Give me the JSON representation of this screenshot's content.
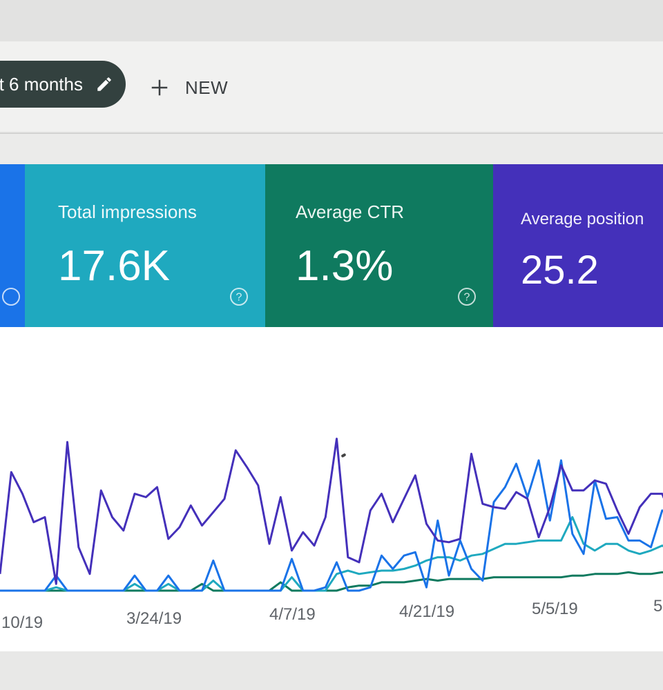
{
  "toolbar": {
    "filter_chip_label": "t 6 months",
    "filter_chip_icon": "pencil-icon",
    "new_button_label": "NEW",
    "new_button_icon": "plus-icon"
  },
  "cards": [
    {
      "id": "clicks",
      "title": "",
      "value": "",
      "color": "#1a73e8",
      "help_icon": "help-circle-icon"
    },
    {
      "id": "impressions",
      "title": "Total impressions",
      "value": "17.6K",
      "color": "#1fa9bf",
      "help_icon": "help-circle-icon"
    },
    {
      "id": "ctr",
      "title": "Average CTR",
      "value": "1.3%",
      "color": "#0f7a5f",
      "help_icon": "help-circle-icon"
    },
    {
      "id": "position",
      "title": "Average position",
      "value": "25.2",
      "color": "#4430ba"
    }
  ],
  "chart_data": {
    "type": "line",
    "x_tick_labels": [
      "10/19",
      "3/24/19",
      "4/7/19",
      "4/21/19",
      "5/5/19",
      "5"
    ],
    "y_range_normalized": [
      0,
      1
    ],
    "series": [
      {
        "color": "#4430ba",
        "values": [
          0.1,
          0.71,
          0.58,
          0.41,
          0.44,
          0.04,
          0.89,
          0.26,
          0.1,
          0.6,
          0.44,
          0.36,
          0.58,
          0.56,
          0.62,
          0.31,
          0.38,
          0.51,
          0.39,
          0.47,
          0.55,
          0.84,
          0.74,
          0.63,
          0.28,
          0.56,
          0.24,
          0.35,
          0.27,
          0.44,
          0.91,
          0.2,
          0.17,
          0.48,
          0.58,
          0.41,
          0.55,
          0.69,
          0.4,
          0.3,
          0.29,
          0.31,
          0.82,
          0.52,
          0.5,
          0.49,
          0.59,
          0.55,
          0.32,
          0.5,
          0.75,
          0.6,
          0.6,
          0.66,
          0.64,
          0.48,
          0.34,
          0.5,
          0.58,
          0.58,
          0.41
        ]
      },
      {
        "color": "#1a73e8",
        "values": [
          0,
          0,
          0,
          0,
          0,
          0.09,
          0,
          0,
          0,
          0,
          0,
          0,
          0.09,
          0,
          0,
          0.09,
          0,
          0,
          0,
          0.18,
          0,
          0,
          0,
          0,
          0,
          0,
          0.19,
          0,
          0,
          0.02,
          0.17,
          0,
          0,
          0.02,
          0.21,
          0.13,
          0.21,
          0.23,
          0.02,
          0.42,
          0.09,
          0.3,
          0.13,
          0.06,
          0.53,
          0.62,
          0.76,
          0.56,
          0.78,
          0.42,
          0.78,
          0.34,
          0.22,
          0.66,
          0.43,
          0.44,
          0.3,
          0.3,
          0.26,
          0.48,
          0.44
        ]
      },
      {
        "color": "#1fa9bf",
        "values": [
          0,
          0,
          0,
          0,
          0,
          0.02,
          0,
          0,
          0,
          0,
          0,
          0,
          0.04,
          0,
          0,
          0.04,
          0,
          0,
          0,
          0.06,
          0,
          0,
          0,
          0,
          0,
          0,
          0.08,
          0,
          0,
          0,
          0.1,
          0.12,
          0.1,
          0.11,
          0.12,
          0.12,
          0.13,
          0.15,
          0.18,
          0.2,
          0.2,
          0.18,
          0.21,
          0.22,
          0.25,
          0.28,
          0.28,
          0.29,
          0.3,
          0.3,
          0.3,
          0.44,
          0.28,
          0.24,
          0.28,
          0.28,
          0.24,
          0.22,
          0.24,
          0.27,
          0.23
        ]
      },
      {
        "color": "#0f7a5f",
        "values": [
          0,
          0,
          0,
          0,
          0,
          0,
          0,
          0,
          0,
          0,
          0,
          0,
          0,
          0,
          0,
          0,
          0,
          0,
          0.04,
          0,
          0,
          0,
          0,
          0,
          0,
          0.05,
          0,
          0,
          0,
          0,
          0,
          0.02,
          0.03,
          0.03,
          0.05,
          0.05,
          0.05,
          0.06,
          0.07,
          0.06,
          0.07,
          0.07,
          0.07,
          0.07,
          0.08,
          0.08,
          0.08,
          0.08,
          0.08,
          0.08,
          0.08,
          0.09,
          0.09,
          0.1,
          0.1,
          0.1,
          0.11,
          0.1,
          0.1,
          0.11,
          0.1
        ]
      }
    ]
  }
}
